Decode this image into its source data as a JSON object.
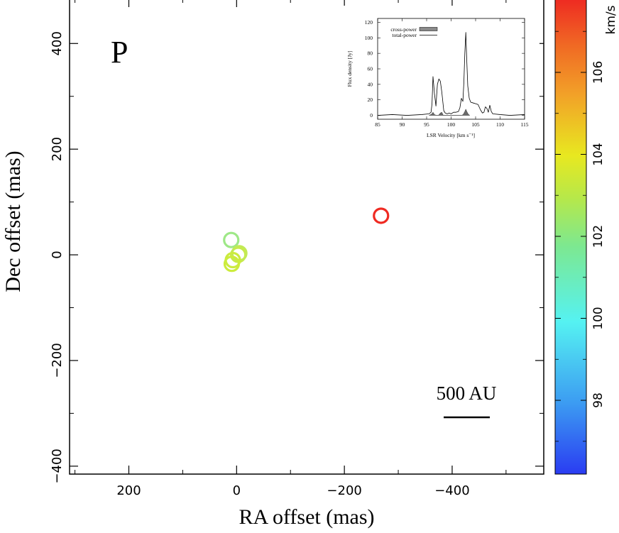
{
  "panel_label": "P",
  "scale_bar": {
    "label": "500 AU",
    "length_mas": 87
  },
  "colorbar": {
    "unit": "km/s",
    "vmin": 96.2,
    "vmax": 107.8,
    "ticks": [
      "98",
      "100",
      "102",
      "104",
      "106"
    ],
    "tick_values": [
      98,
      100,
      102,
      104,
      106
    ]
  },
  "chart_data": [
    {
      "type": "scatter",
      "xlabel": "RA offset (mas)",
      "ylabel": "Dec offset (mas)",
      "xlim": [
        310,
        -570
      ],
      "ylim": [
        -415,
        485
      ],
      "x_ticks": [
        "200",
        "0",
        "−200",
        "−400"
      ],
      "x_tick_values": [
        200,
        0,
        -200,
        -400
      ],
      "y_ticks": [
        "400",
        "200",
        "0",
        "−200",
        "−400"
      ],
      "y_tick_values": [
        400,
        200,
        0,
        -200,
        -400
      ],
      "grid": false,
      "points": [
        {
          "x": 10,
          "y": 28,
          "v": 101.5,
          "color": "#9ee887"
        },
        {
          "x": -3,
          "y": 0,
          "v": 103.2,
          "color": "#c8ea4a"
        },
        {
          "x": -5,
          "y": 3,
          "v": 103.0,
          "color": "#c2ea55"
        },
        {
          "x": 7,
          "y": -10,
          "v": 103.5,
          "color": "#cbeb3f"
        },
        {
          "x": 9,
          "y": -17,
          "v": 103.6,
          "color": "#ccec3c"
        },
        {
          "x": -268,
          "y": 74,
          "v": 107.8,
          "color": "#ef2a22"
        }
      ]
    },
    {
      "type": "line",
      "xlabel": "LSR Velocity [km s⁻¹]",
      "ylabel": "Flux density [Jy]",
      "xlim": [
        85,
        115
      ],
      "ylim": [
        -5,
        125
      ],
      "x_ticks": [
        "85",
        "90",
        "95",
        "100",
        "105",
        "110",
        "115"
      ],
      "x_tick_values": [
        85,
        90,
        95,
        100,
        105,
        110,
        115
      ],
      "y_ticks": [
        "0",
        "20",
        "40",
        "60",
        "80",
        "100",
        "120"
      ],
      "y_tick_values": [
        0,
        20,
        40,
        60,
        80,
        100,
        120
      ],
      "legend": [
        "cross-power",
        "total-power"
      ],
      "legend_position": "top-center",
      "series": [
        {
          "name": "total-power",
          "x": [
            85,
            88,
            91,
            94,
            95.5,
            95.9,
            96.1,
            96.3,
            96.6,
            96.9,
            97.2,
            97.5,
            97.8,
            98.1,
            98.5,
            98.8,
            99.2,
            99.6,
            100,
            100.5,
            101,
            101.5,
            101.8,
            102.1,
            102.4,
            102.6,
            102.8,
            103,
            103.2,
            103.4,
            103.7,
            104,
            104.5,
            105,
            105.5,
            106,
            106.4,
            106.7,
            107,
            107.3,
            107.6,
            107.9,
            108.2,
            108.5,
            110,
            112,
            115
          ],
          "y": [
            0,
            1,
            0,
            1,
            2,
            4,
            15,
            50,
            28,
            12,
            40,
            47,
            44,
            30,
            6,
            3,
            2,
            3,
            2,
            4,
            4,
            5,
            10,
            22,
            18,
            42,
            80,
            107,
            70,
            38,
            22,
            17,
            16,
            15,
            14,
            7,
            3,
            4,
            11,
            9,
            4,
            13,
            5,
            2,
            1,
            0,
            1
          ]
        },
        {
          "name": "cross-power",
          "x": [
            95.5,
            96,
            96.3,
            96.6,
            97,
            97.4,
            97.8,
            98.1,
            98.4,
            102.2,
            102.5,
            102.8,
            103,
            103.2,
            103.5,
            103.8
          ],
          "y": [
            0,
            1.5,
            4,
            1,
            0,
            0,
            3,
            4,
            0,
            0,
            1.5,
            5,
            8,
            5,
            1.5,
            0
          ]
        }
      ]
    }
  ]
}
